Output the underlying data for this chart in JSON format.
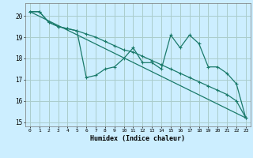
{
  "title": "",
  "xlabel": "Humidex (Indice chaleur)",
  "background_color": "#cceeff",
  "grid_color": "#aacccc",
  "line_color": "#1a7a6a",
  "x_min": -0.5,
  "x_max": 23.5,
  "y_min": 14.8,
  "y_max": 20.6,
  "yticks": [
    15,
    16,
    17,
    18,
    19,
    20
  ],
  "xticks": [
    0,
    1,
    2,
    3,
    4,
    5,
    6,
    7,
    8,
    9,
    10,
    11,
    12,
    13,
    14,
    15,
    16,
    17,
    18,
    19,
    20,
    21,
    22,
    23
  ],
  "line1_x": [
    0,
    1,
    2,
    3,
    4,
    5,
    6,
    7,
    8,
    9,
    10,
    11,
    12,
    13,
    14,
    15,
    16,
    17,
    18,
    19,
    20,
    21,
    22,
    23
  ],
  "line1_y": [
    20.2,
    20.2,
    19.7,
    19.5,
    19.4,
    19.3,
    17.1,
    17.2,
    17.5,
    17.6,
    18.0,
    18.5,
    17.8,
    17.8,
    17.5,
    19.1,
    18.5,
    19.1,
    18.7,
    17.6,
    17.6,
    17.3,
    16.8,
    15.2
  ],
  "line2_x": [
    0,
    1,
    2,
    3,
    4,
    5,
    6,
    7,
    8,
    9,
    10,
    11,
    12,
    13,
    14,
    15,
    16,
    17,
    18,
    19,
    20,
    21,
    22,
    23
  ],
  "line2_y": [
    20.2,
    20.2,
    19.7,
    19.5,
    19.4,
    19.3,
    19.15,
    19.0,
    18.8,
    18.6,
    18.4,
    18.3,
    18.1,
    17.9,
    17.7,
    17.5,
    17.3,
    17.1,
    16.9,
    16.7,
    16.5,
    16.3,
    16.0,
    15.2
  ],
  "line3_x": [
    0,
    23
  ],
  "line3_y": [
    20.2,
    15.2
  ]
}
